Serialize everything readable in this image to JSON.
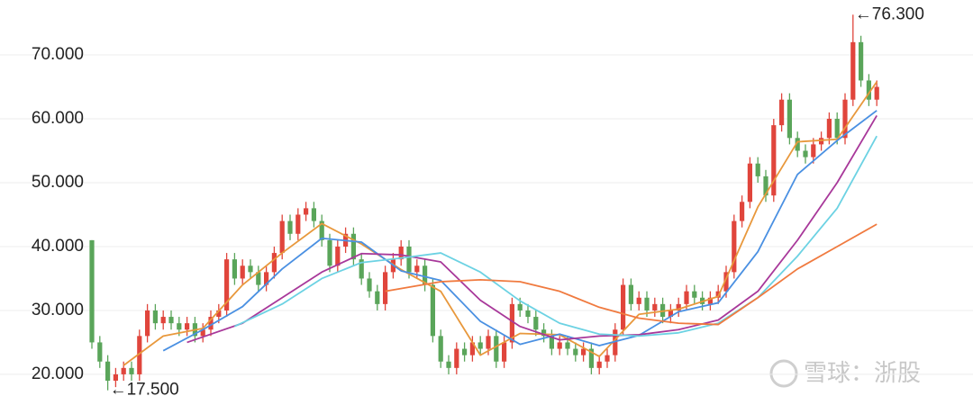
{
  "chart_data": {
    "type": "candlestick",
    "ylim": [
      15.2,
      78.6
    ],
    "yticks": [
      {
        "value": 20,
        "label": "20.000"
      },
      {
        "value": 30,
        "label": "30.000"
      },
      {
        "value": 40,
        "label": "40.000"
      },
      {
        "value": 50,
        "label": "50.000"
      },
      {
        "value": 60,
        "label": "60.000"
      },
      {
        "value": 70,
        "label": "70.000"
      }
    ],
    "grid": true,
    "up_color": "#e0453c",
    "down_color": "#5aa55a",
    "open": [
      41,
      25,
      22,
      19,
      20,
      21,
      20,
      26,
      30,
      28,
      29,
      28,
      27,
      28,
      26,
      27,
      29,
      30,
      38,
      35,
      37,
      36,
      34,
      36,
      39,
      44,
      42,
      45,
      46,
      44,
      41,
      37,
      40,
      42,
      38,
      35,
      33,
      31,
      36,
      38,
      40,
      36,
      37,
      34,
      26,
      22,
      21,
      24,
      23,
      25,
      24,
      26,
      22,
      25,
      31,
      30,
      29,
      27,
      26,
      24,
      25,
      24,
      23,
      24,
      21,
      22,
      23,
      27,
      34,
      31,
      32,
      30,
      31,
      29,
      30,
      31,
      33,
      32,
      31,
      32,
      33,
      36,
      44,
      47,
      53,
      51,
      48,
      59,
      63,
      57,
      55,
      54,
      56,
      57,
      60,
      57,
      63,
      72,
      66,
      63
    ],
    "high": [
      41,
      26,
      23,
      21,
      22,
      22,
      27,
      31,
      31,
      30,
      30,
      29,
      29,
      29,
      28,
      30,
      31,
      39,
      39,
      38,
      38,
      37,
      37,
      40,
      45,
      45,
      46,
      47,
      47,
      45,
      42,
      41,
      43,
      43,
      39,
      36,
      34,
      37,
      39,
      41,
      41,
      38,
      38,
      35,
      27,
      23,
      25,
      25,
      26,
      26,
      27,
      27,
      26,
      32,
      32,
      31,
      30,
      28,
      27,
      26,
      26,
      25,
      25,
      25,
      23,
      24,
      28,
      35,
      35,
      33,
      33,
      32,
      32,
      31,
      32,
      34,
      34,
      33,
      33,
      34,
      37,
      45,
      48,
      54,
      54,
      52,
      60,
      64,
      64,
      58,
      56,
      57,
      58,
      61,
      61,
      64,
      76.3,
      73,
      67,
      66
    ],
    "low": [
      24,
      21,
      17.5,
      18,
      19,
      19,
      19,
      25,
      27,
      27,
      27,
      26,
      26,
      25,
      25,
      26,
      28,
      29,
      34,
      34,
      35,
      33,
      33,
      35,
      38,
      41,
      41,
      44,
      43,
      40,
      36,
      36,
      39,
      37,
      34,
      32,
      30,
      30,
      35,
      37,
      35,
      35,
      33,
      25,
      21,
      20,
      20,
      22,
      22,
      23,
      23,
      21,
      21,
      24,
      29,
      28,
      26,
      25,
      23,
      23,
      23,
      22,
      22,
      20,
      20,
      21,
      22,
      26,
      30,
      30,
      29,
      29,
      28,
      28,
      29,
      30,
      31,
      30,
      30,
      31,
      32,
      35,
      43,
      46,
      50,
      47,
      47,
      58,
      56,
      54,
      53,
      53,
      55,
      56,
      56,
      56,
      62,
      65,
      62,
      62
    ],
    "close": [
      25,
      22,
      19,
      20,
      21,
      20,
      26,
      30,
      28,
      29,
      28,
      27,
      28,
      26,
      27,
      29,
      30,
      38,
      35,
      37,
      36,
      34,
      36,
      39,
      44,
      42,
      45,
      46,
      44,
      41,
      37,
      40,
      42,
      38,
      35,
      33,
      31,
      36,
      38,
      40,
      36,
      37,
      34,
      26,
      22,
      21,
      24,
      23,
      25,
      24,
      26,
      22,
      25,
      31,
      30,
      29,
      27,
      26,
      24,
      25,
      24,
      23,
      24,
      21,
      22,
      23,
      27,
      34,
      31,
      32,
      30,
      31,
      29,
      30,
      31,
      33,
      32,
      31,
      32,
      33,
      36,
      44,
      47,
      53,
      51,
      48,
      59,
      63,
      57,
      55,
      54,
      56,
      57,
      60,
      57,
      63,
      72,
      66,
      63,
      65
    ],
    "series": [
      {
        "color": "#e8983c",
        "x": [
          4,
          9,
          14,
          19,
          24,
          29,
          34,
          39,
          44,
          49,
          54,
          59,
          64,
          69,
          74,
          79,
          84,
          89,
          94,
          99
        ],
        "values": [
          21.4,
          26,
          27.2,
          34,
          39,
          43.6,
          40.4,
          36.4,
          33,
          23,
          26.4,
          26.2,
          22.8,
          29.4,
          30.2,
          32.2,
          46.2,
          56.4,
          56.8,
          65.8
        ]
      },
      {
        "color": "#4a90e2",
        "x": [
          9,
          14,
          19,
          24,
          29,
          34,
          39,
          44,
          49,
          54,
          59,
          64,
          69,
          74,
          79,
          84,
          89,
          94,
          99
        ],
        "values": [
          23.7,
          27,
          30.6,
          36.5,
          41.3,
          40.7,
          36.2,
          34.7,
          28.3,
          24.7,
          26.3,
          24.5,
          26.1,
          29.8,
          31.2,
          39.2,
          51.3,
          56.6,
          61.3
        ]
      },
      {
        "color": "#a8389a",
        "x": [
          12,
          19,
          24,
          29,
          34,
          39,
          44,
          49,
          54,
          59,
          64,
          69,
          74,
          79,
          84,
          89,
          94,
          99
        ],
        "values": [
          25,
          28,
          32,
          36,
          38.9,
          38.7,
          37.6,
          31.6,
          27.5,
          25.4,
          26,
          26.2,
          27,
          28.5,
          33,
          41,
          50,
          60.5
        ]
      },
      {
        "color": "#6cd2e3",
        "x": [
          18,
          24,
          29,
          34,
          39,
          44,
          49,
          54,
          59,
          64,
          69,
          74,
          79,
          84,
          89,
          94,
          99
        ],
        "values": [
          27.5,
          31,
          35,
          37.5,
          38.2,
          39,
          36,
          31.5,
          28,
          26.3,
          26,
          26.5,
          28,
          32,
          38.5,
          46,
          57.3
        ]
      },
      {
        "color": "#f07a3f",
        "x": [
          37,
          44,
          49,
          54,
          59,
          64,
          69,
          74,
          79,
          84,
          89,
          94,
          99
        ],
        "values": [
          33,
          34.5,
          34.8,
          34.5,
          33,
          30.5,
          28.8,
          28,
          27.8,
          32,
          36.5,
          40,
          43.5
        ]
      }
    ],
    "annotations": [
      {
        "label": "←76.300",
        "x": 96,
        "y": 76.3
      },
      {
        "label": "←17.500",
        "x": 2,
        "y": 17.5
      }
    ],
    "watermark": "雪球：浙股"
  }
}
